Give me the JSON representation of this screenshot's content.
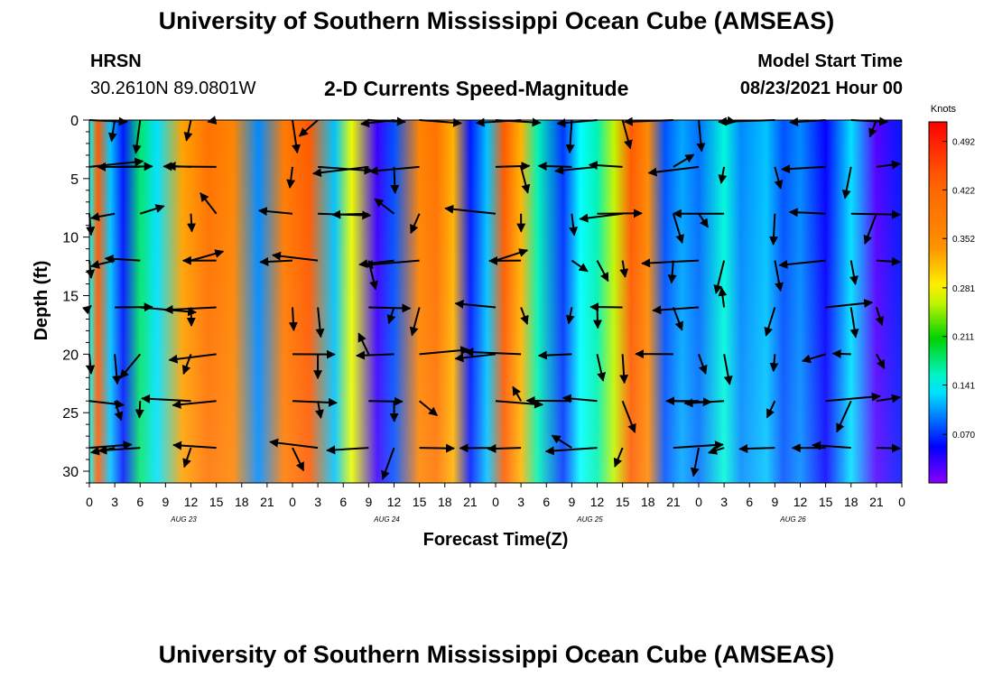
{
  "header": {
    "title_top": "University of Southern Mississippi Ocean Cube (AMSEAS)",
    "title_bottom": "University of Southern Mississippi Ocean Cube (AMSEAS)",
    "station_name": "HRSN",
    "station_coords": "30.2610N  89.0801W",
    "chart_title": "2-D Currents Speed-Magnitude",
    "model_start_label": "Model Start Time",
    "model_start_value": "08/23/2021 Hour 00"
  },
  "chart_data": {
    "type": "heatmap",
    "title": "2-D Currents Speed-Magnitude",
    "xlabel": "Forecast Time(Z)",
    "ylabel": "Depth (ft)",
    "x_range_hours": [
      0,
      96
    ],
    "y_range_ft": [
      0,
      31
    ],
    "y_inverted": true,
    "y_ticks": [
      0,
      5,
      10,
      15,
      20,
      25,
      30
    ],
    "x_ticks": [
      {
        "hour": 0,
        "label": "0"
      },
      {
        "hour": 3,
        "label": "3"
      },
      {
        "hour": 6,
        "label": "6"
      },
      {
        "hour": 9,
        "label": "9"
      },
      {
        "hour": 12,
        "label": "12"
      },
      {
        "hour": 15,
        "label": "15"
      },
      {
        "hour": 18,
        "label": "18"
      },
      {
        "hour": 21,
        "label": "21"
      },
      {
        "hour": 24,
        "label": "0"
      },
      {
        "hour": 27,
        "label": "3"
      },
      {
        "hour": 30,
        "label": "6"
      },
      {
        "hour": 33,
        "label": "9"
      },
      {
        "hour": 36,
        "label": "12"
      },
      {
        "hour": 39,
        "label": "15"
      },
      {
        "hour": 42,
        "label": "18"
      },
      {
        "hour": 45,
        "label": "21"
      },
      {
        "hour": 48,
        "label": "0"
      },
      {
        "hour": 51,
        "label": "3"
      },
      {
        "hour": 54,
        "label": "6"
      },
      {
        "hour": 57,
        "label": "9"
      },
      {
        "hour": 60,
        "label": "12"
      },
      {
        "hour": 63,
        "label": "15"
      },
      {
        "hour": 66,
        "label": "18"
      },
      {
        "hour": 69,
        "label": "21"
      },
      {
        "hour": 72,
        "label": "0"
      },
      {
        "hour": 75,
        "label": "3"
      },
      {
        "hour": 78,
        "label": "6"
      },
      {
        "hour": 81,
        "label": "9"
      },
      {
        "hour": 84,
        "label": "12"
      },
      {
        "hour": 87,
        "label": "15"
      },
      {
        "hour": 90,
        "label": "18"
      },
      {
        "hour": 93,
        "label": "21"
      },
      {
        "hour": 96,
        "label": "0"
      }
    ],
    "date_labels": [
      {
        "hour": 12,
        "label": "AUG 23"
      },
      {
        "hour": 36,
        "label": "AUG 24"
      },
      {
        "hour": 60,
        "label": "AUG 25"
      },
      {
        "hour": 84,
        "label": "AUG 26"
      }
    ],
    "colorbar": {
      "unit": "Knots",
      "range": [
        0.0,
        0.52
      ],
      "tick_values": [
        0.492,
        0.422,
        0.352,
        0.281,
        0.211,
        0.141,
        0.07
      ],
      "tick_labels": [
        "0.492",
        "0.422",
        "0.352",
        "0.281",
        "0.211",
        "0.141",
        "0.070"
      ]
    },
    "speed_profile_knots": [
      [
        0,
        0.14
      ],
      [
        1,
        0.44
      ],
      [
        2.5,
        0.12
      ],
      [
        4,
        0.06
      ],
      [
        6,
        0.18
      ],
      [
        8,
        0.13
      ],
      [
        11,
        0.33
      ],
      [
        14,
        0.4
      ],
      [
        17,
        0.36
      ],
      [
        20,
        0.1
      ],
      [
        23,
        0.38
      ],
      [
        26,
        0.44
      ],
      [
        29,
        0.12
      ],
      [
        31,
        0.27
      ],
      [
        34,
        0.03
      ],
      [
        36,
        0.08
      ],
      [
        39,
        0.36
      ],
      [
        41,
        0.4
      ],
      [
        43,
        0.32
      ],
      [
        45,
        0.06
      ],
      [
        47,
        0.12
      ],
      [
        49,
        0.44
      ],
      [
        51,
        0.32
      ],
      [
        53,
        0.16
      ],
      [
        56,
        0.07
      ],
      [
        58,
        0.14
      ],
      [
        60,
        0.16
      ],
      [
        62,
        0.26
      ],
      [
        64,
        0.44
      ],
      [
        66,
        0.35
      ],
      [
        68,
        0.08
      ],
      [
        70,
        0.11
      ],
      [
        72,
        0.09
      ],
      [
        75,
        0.15
      ],
      [
        77,
        0.1
      ],
      [
        80,
        0.12
      ],
      [
        82,
        0.08
      ],
      [
        84,
        0.1
      ],
      [
        87,
        0.05
      ],
      [
        90,
        0.13
      ],
      [
        93,
        0.02
      ],
      [
        96,
        0.06
      ]
    ],
    "vector_depths_ft": [
      0,
      4,
      8,
      12,
      16,
      20,
      24,
      28
    ],
    "vector_hours": [
      0,
      3,
      6,
      12,
      15,
      24,
      27,
      33,
      36,
      39,
      48,
      51,
      57,
      60,
      63,
      69,
      72,
      75,
      81,
      87,
      90,
      93
    ],
    "vector_direction_seed": 7
  }
}
